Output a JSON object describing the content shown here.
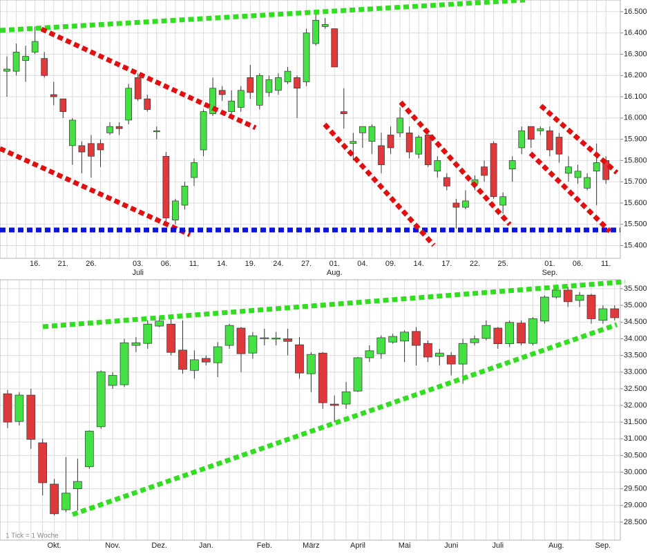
{
  "chart_data": [
    {
      "type": "candlestick",
      "categories": [
        null,
        null,
        null,
        "16.",
        null,
        null,
        "21.",
        null,
        null,
        "26.",
        null,
        null,
        null,
        null,
        "03.",
        null,
        null,
        "06.",
        null,
        null,
        "11.",
        null,
        null,
        "14.",
        null,
        null,
        "19.",
        null,
        null,
        "24.",
        null,
        null,
        "27.",
        null,
        null,
        "01.",
        null,
        null,
        "04.",
        null,
        null,
        "09.",
        null,
        null,
        "14.",
        null,
        null,
        "17.",
        null,
        null,
        "22.",
        null,
        null,
        "25.",
        null,
        null,
        null,
        null,
        "01.",
        null,
        null,
        "06.",
        null,
        null,
        "11."
      ],
      "month_labels": [
        null,
        null,
        null,
        null,
        null,
        null,
        null,
        null,
        null,
        null,
        null,
        null,
        null,
        null,
        "Juli",
        null,
        null,
        null,
        null,
        null,
        null,
        null,
        null,
        null,
        null,
        null,
        null,
        null,
        null,
        null,
        null,
        null,
        null,
        null,
        null,
        "Aug.",
        null,
        null,
        null,
        null,
        null,
        null,
        null,
        null,
        null,
        null,
        null,
        null,
        null,
        null,
        null,
        null,
        null,
        null,
        null,
        null,
        null,
        null,
        "Sep.",
        null,
        null,
        null,
        null,
        null,
        null
      ],
      "open": [
        16.22,
        16.22,
        16.27,
        16.31,
        16.28,
        16.11,
        16.09,
        15.87,
        15.87,
        15.88,
        15.88,
        15.93,
        15.96,
        15.99,
        16.19,
        16.09,
        15.94,
        15.82,
        15.52,
        15.59,
        15.72,
        15.85,
        16.02,
        16.13,
        16.03,
        16.05,
        16.19,
        16.06,
        16.12,
        16.13,
        16.17,
        16.19,
        16.17,
        16.35,
        16.43,
        16.42,
        16.03,
        15.88,
        15.93,
        15.89,
        15.87,
        15.92,
        15.93,
        15.93,
        15.83,
        15.92,
        15.75,
        15.72,
        15.6,
        15.58,
        15.69,
        15.77,
        15.88,
        15.59,
        15.76,
        15.86,
        15.96,
        15.94,
        15.94,
        15.91,
        15.74,
        15.72,
        15.67,
        15.75,
        15.8
      ],
      "high": [
        16.29,
        16.35,
        16.34,
        16.43,
        16.31,
        16.17,
        16.09,
        16.0,
        15.89,
        15.92,
        15.9,
        15.98,
        15.98,
        16.16,
        16.21,
        16.11,
        15.96,
        15.84,
        15.62,
        15.7,
        15.81,
        16.04,
        16.19,
        16.15,
        16.13,
        16.15,
        16.25,
        16.21,
        16.2,
        16.21,
        16.24,
        16.2,
        16.42,
        16.49,
        16.47,
        16.42,
        16.14,
        15.93,
        15.96,
        15.97,
        15.93,
        15.96,
        16.05,
        15.96,
        15.92,
        15.95,
        15.82,
        15.74,
        15.62,
        15.66,
        15.73,
        15.8,
        15.89,
        15.65,
        15.82,
        15.96,
        15.96,
        15.96,
        15.96,
        15.93,
        15.82,
        15.78,
        15.74,
        15.88,
        15.82
      ],
      "low": [
        16.1,
        16.2,
        16.17,
        16.3,
        16.19,
        16.06,
        16.0,
        15.78,
        15.74,
        15.72,
        15.77,
        15.92,
        15.92,
        15.97,
        16.08,
        16.03,
        15.9,
        15.51,
        15.5,
        15.57,
        15.68,
        15.82,
        16.01,
        16.08,
        16.0,
        16.03,
        16.09,
        16.04,
        16.1,
        16.11,
        16.16,
        16.0,
        16.15,
        16.34,
        16.42,
        16.24,
        15.95,
        15.8,
        15.86,
        15.83,
        15.74,
        15.83,
        15.91,
        15.81,
        15.81,
        15.77,
        15.72,
        15.66,
        15.48,
        15.57,
        15.66,
        15.7,
        15.62,
        15.55,
        15.7,
        15.83,
        15.86,
        15.92,
        15.82,
        15.79,
        15.7,
        15.69,
        15.66,
        15.59,
        15.69
      ],
      "close": [
        16.23,
        16.31,
        16.29,
        16.36,
        16.2,
        16.1,
        16.03,
        15.99,
        15.84,
        15.82,
        15.85,
        15.96,
        15.95,
        16.14,
        16.09,
        16.04,
        15.94,
        15.53,
        15.61,
        15.68,
        15.79,
        16.03,
        16.14,
        16.11,
        16.08,
        16.13,
        16.12,
        16.2,
        16.18,
        16.19,
        16.22,
        16.14,
        16.4,
        16.46,
        16.44,
        16.24,
        16.02,
        15.89,
        15.96,
        15.96,
        15.78,
        15.86,
        16.0,
        15.84,
        15.91,
        15.78,
        15.8,
        15.68,
        15.58,
        15.61,
        15.71,
        15.73,
        15.63,
        15.63,
        15.8,
        15.94,
        15.9,
        15.95,
        15.85,
        15.83,
        15.77,
        15.75,
        15.72,
        15.79,
        15.71
      ],
      "ylim": [
        15.34,
        16.555
      ],
      "yticks": [
        {
          "value": 15.4,
          "label": "15.400"
        },
        {
          "value": 15.5,
          "label": "15.500"
        },
        {
          "value": 15.6,
          "label": "15.600"
        },
        {
          "value": 15.7,
          "label": "15.700"
        },
        {
          "value": 15.8,
          "label": "15.800"
        },
        {
          "value": 15.9,
          "label": "15.900"
        },
        {
          "value": 16.0,
          "label": "16.000"
        },
        {
          "value": 16.1,
          "label": "16.100"
        },
        {
          "value": 16.2,
          "label": "16.200"
        },
        {
          "value": 16.3,
          "label": "16.300"
        },
        {
          "value": 16.4,
          "label": "16.400"
        },
        {
          "value": 16.5,
          "label": "16.500"
        }
      ],
      "up_color": "#44e044",
      "down_color": "#e0393c",
      "grid": true
    },
    {
      "type": "candlestick",
      "annotation": "1 Tick = 1 Woche",
      "categories": [
        null,
        null,
        null,
        null,
        "Okt.",
        null,
        null,
        null,
        null,
        "Nov.",
        null,
        null,
        null,
        "Dez.",
        null,
        null,
        null,
        "Jan.",
        null,
        null,
        null,
        null,
        "Feb.",
        null,
        null,
        null,
        "März",
        null,
        null,
        null,
        "April",
        null,
        null,
        null,
        "Mai",
        null,
        null,
        null,
        "Juni",
        null,
        null,
        null,
        "Juli",
        null,
        null,
        null,
        null,
        "Aug.",
        null,
        null,
        null,
        "Sep.",
        null
      ],
      "open": [
        32.35,
        31.52,
        32.31,
        30.88,
        29.64,
        28.87,
        29.5,
        30.16,
        31.36,
        32.6,
        32.62,
        33.8,
        33.86,
        34.38,
        34.44,
        33.66,
        33.05,
        33.41,
        33.28,
        33.8,
        34.32,
        33.57,
        34.03,
        34.0,
        34.0,
        33.82,
        32.95,
        33.57,
        32.04,
        32.04,
        32.43,
        33.43,
        33.55,
        33.9,
        33.93,
        34.22,
        33.86,
        33.47,
        33.5,
        33.24,
        33.88,
        34.01,
        34.32,
        33.85,
        34.47,
        33.86,
        34.53,
        35.25,
        35.46,
        35.15,
        35.31,
        34.55,
        34.9
      ],
      "high": [
        32.46,
        32.4,
        32.5,
        31.0,
        29.8,
        30.45,
        30.4,
        31.25,
        33.05,
        33.0,
        34.0,
        34.05,
        34.55,
        34.65,
        34.6,
        34.55,
        33.65,
        33.5,
        33.9,
        34.45,
        34.35,
        34.2,
        34.3,
        34.2,
        34.3,
        34.05,
        33.6,
        33.6,
        32.3,
        32.7,
        33.45,
        33.8,
        34.1,
        34.15,
        34.25,
        34.35,
        33.95,
        33.7,
        33.6,
        34.0,
        34.1,
        34.55,
        34.35,
        34.55,
        34.55,
        34.65,
        35.3,
        35.55,
        35.55,
        35.4,
        35.35,
        35.0,
        35.0
      ],
      "low": [
        31.32,
        31.4,
        30.7,
        29.3,
        28.7,
        28.8,
        28.85,
        30.1,
        31.3,
        32.5,
        32.55,
        33.6,
        33.7,
        34.35,
        33.5,
        32.95,
        32.8,
        33.2,
        32.85,
        33.7,
        33.0,
        33.4,
        33.8,
        33.8,
        33.5,
        32.8,
        32.4,
        31.9,
        31.5,
        31.9,
        32.4,
        33.3,
        33.4,
        33.85,
        33.3,
        33.2,
        33.3,
        33.2,
        32.9,
        32.65,
        33.8,
        33.95,
        33.7,
        33.75,
        33.8,
        33.8,
        34.45,
        35.2,
        34.95,
        34.95,
        34.45,
        34.45,
        34.55
      ],
      "close": [
        31.5,
        32.31,
        30.98,
        29.68,
        28.75,
        29.37,
        29.72,
        31.23,
        33.01,
        32.9,
        33.88,
        33.88,
        34.44,
        34.53,
        33.59,
        33.08,
        33.37,
        33.3,
        33.76,
        34.4,
        33.55,
        34.09,
        34.03,
        34.02,
        33.92,
        32.97,
        33.53,
        32.08,
        32.0,
        32.41,
        33.43,
        33.64,
        34.03,
        34.07,
        34.2,
        33.8,
        33.45,
        33.57,
        33.24,
        33.86,
        34.0,
        34.4,
        33.85,
        34.49,
        33.87,
        34.6,
        35.25,
        35.46,
        35.11,
        35.31,
        34.6,
        34.9,
        34.63
      ],
      "ylim": [
        27.96,
        35.77
      ],
      "yticks": [
        {
          "value": 28.5,
          "label": "28.500"
        },
        {
          "value": 29.0,
          "label": "29.000"
        },
        {
          "value": 29.5,
          "label": "29.500"
        },
        {
          "value": 30.0,
          "label": "30.000"
        },
        {
          "value": 30.5,
          "label": "30.500"
        },
        {
          "value": 31.0,
          "label": "31.000"
        },
        {
          "value": 31.5,
          "label": "31.500"
        },
        {
          "value": 32.0,
          "label": "32.000"
        },
        {
          "value": 32.5,
          "label": "32.500"
        },
        {
          "value": 33.0,
          "label": "33.000"
        },
        {
          "value": 33.5,
          "label": "33.500"
        },
        {
          "value": 34.0,
          "label": "34.000"
        },
        {
          "value": 34.5,
          "label": "34.500"
        },
        {
          "value": 35.0,
          "label": "35.000"
        },
        {
          "value": 35.5,
          "label": "35.500"
        }
      ],
      "up_color": "#44e044",
      "down_color": "#e0393c",
      "grid": true
    }
  ]
}
